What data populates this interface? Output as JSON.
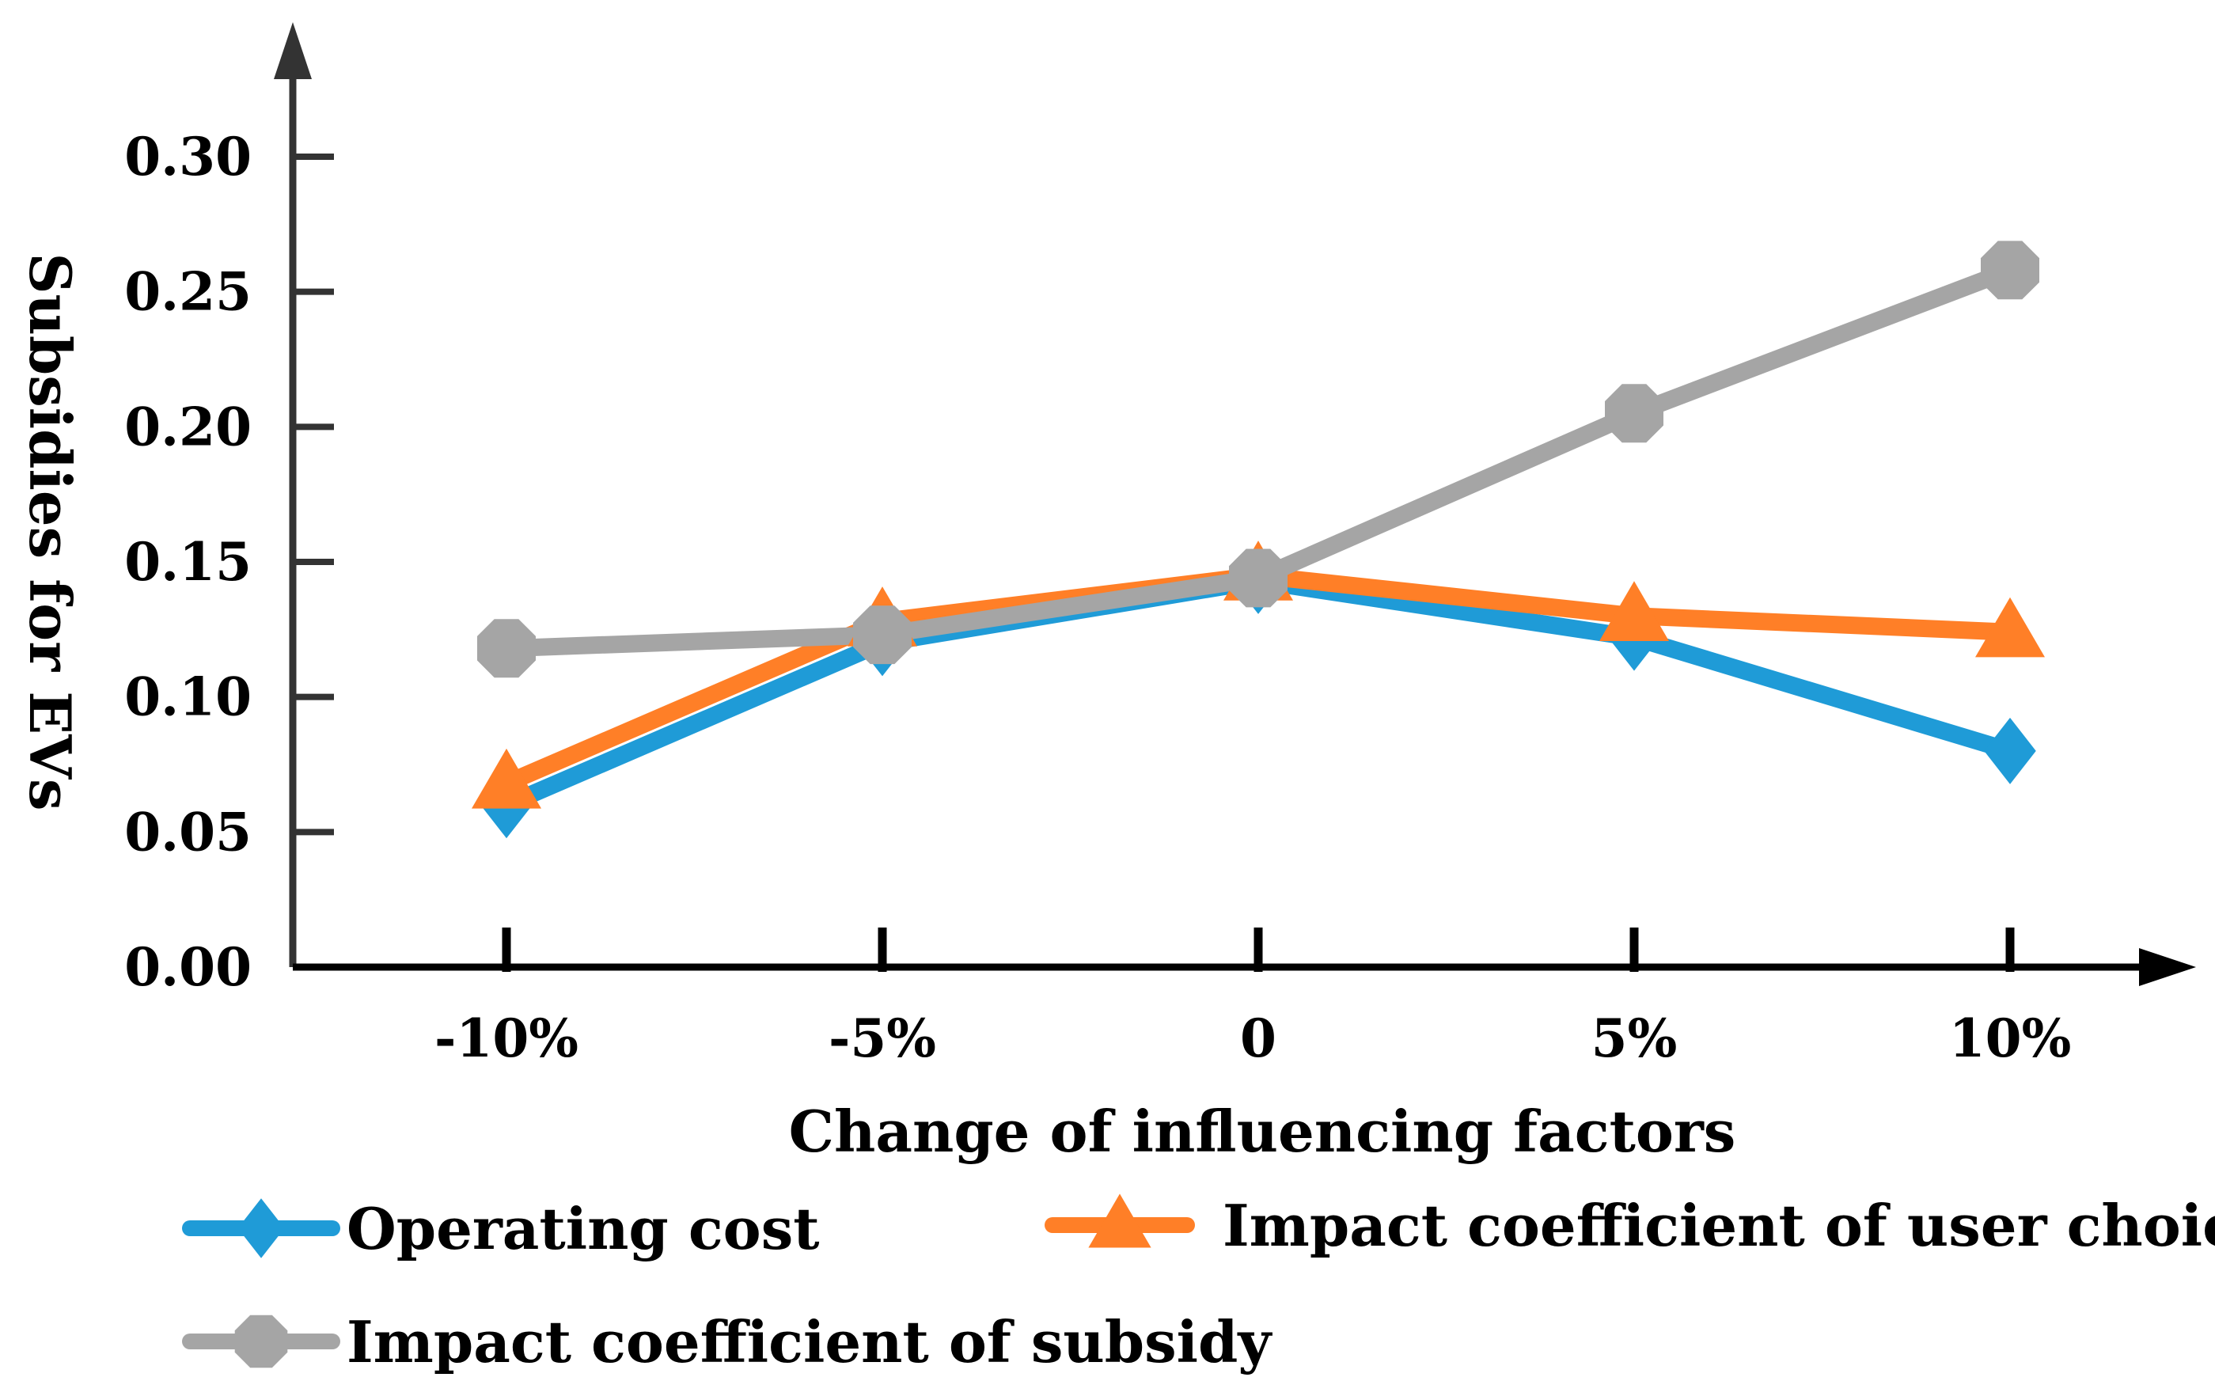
{
  "chart_data": {
    "type": "line",
    "title": "",
    "xlabel": "Change of influencing factors",
    "ylabel": "Subsidies for EVs",
    "categories": [
      "-10%",
      "-5%",
      "0",
      "5%",
      "10%"
    ],
    "ylim": [
      0,
      0.3
    ],
    "yticks": [
      0.0,
      0.05,
      0.1,
      0.15,
      0.2,
      0.25,
      0.3
    ],
    "ytick_labels": [
      "0.00",
      "0.05",
      "0.10",
      "0.15",
      "0.20",
      "0.25",
      "0.30"
    ],
    "grid": false,
    "legend_position": "bottom",
    "series": [
      {
        "name": "Operating cost",
        "marker": "diamond",
        "color": "#1f9bd7",
        "values": [
          0.06,
          0.12,
          0.143,
          0.122,
          0.08
        ]
      },
      {
        "name": "Impact coefficient of user choice",
        "marker": "triangle",
        "color": "#ff7f27",
        "values": [
          0.068,
          0.128,
          0.145,
          0.13,
          0.124
        ]
      },
      {
        "name": "Impact coefficient of subsidy",
        "marker": "octagon",
        "color": "#a5a5a5",
        "values": [
          0.118,
          0.123,
          0.144,
          0.205,
          0.258
        ]
      }
    ]
  },
  "colors": {
    "axis": "#333333"
  }
}
